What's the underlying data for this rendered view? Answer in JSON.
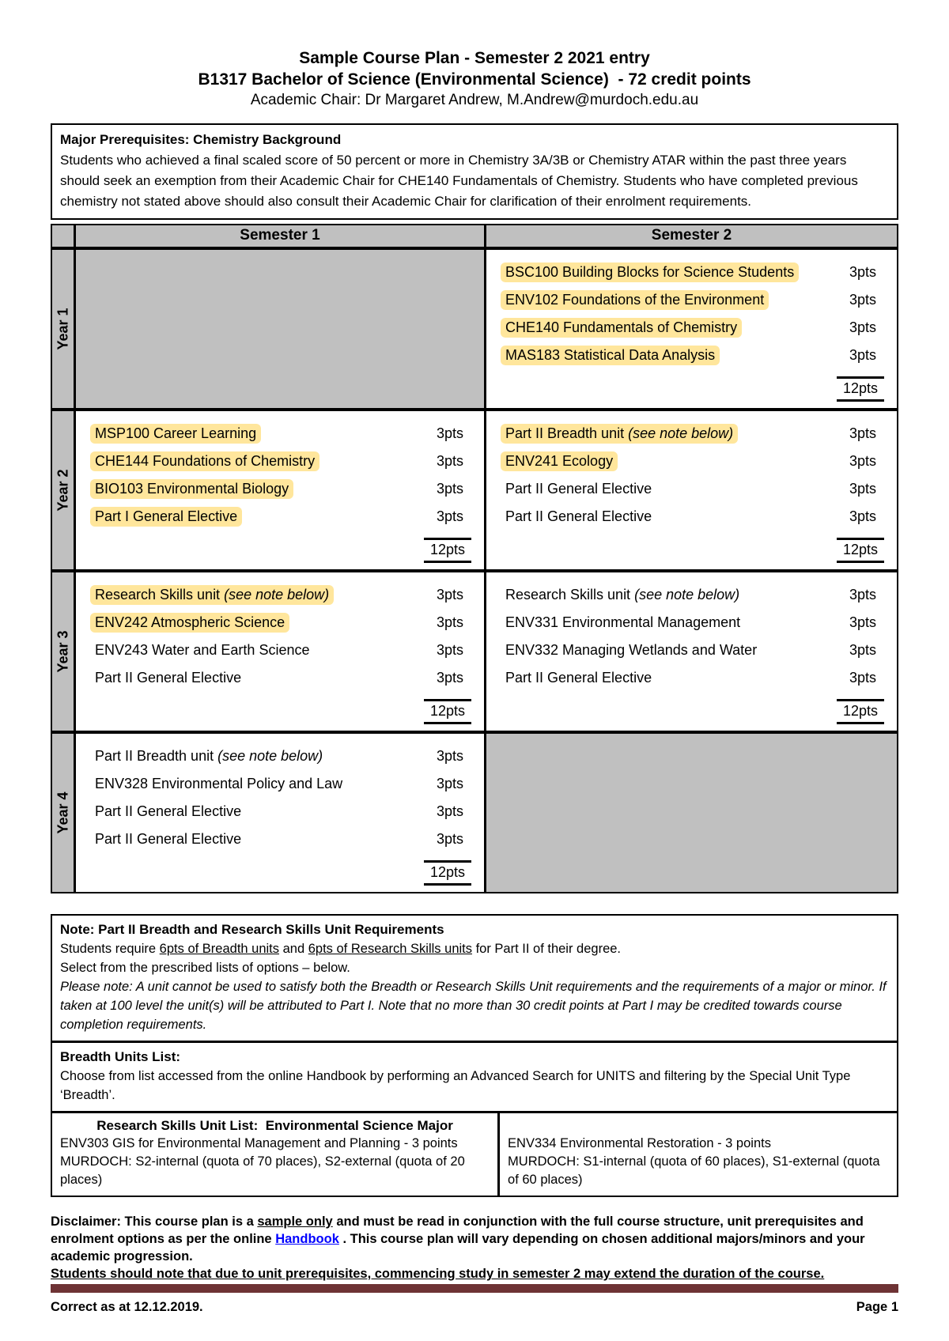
{
  "colors": {
    "highlight": "#ffe69c",
    "shaded": "#c0c0c0",
    "rule": "#6e3335",
    "link": "#0000ff"
  },
  "header": {
    "title1": "Sample Course Plan - Semester 2 2021 entry",
    "title2": "B1317 Bachelor of Science (Environmental Science)  - 72 credit points",
    "chair": "Academic Chair: Dr Margaret Andrew, M.Andrew@murdoch.edu.au"
  },
  "prerequisites": {
    "title": "Major Prerequisites: Chemistry Background",
    "body": "Students who achieved a final scaled score of 50 percent or more in Chemistry 3A/3B or Chemistry ATAR within the past three years should seek an exemption from their Academic Chair for CHE140 Fundamentals of Chemistry. Students who have completed previous chemistry not stated above should also consult their Academic Chair for clarification of their enrolment requirements."
  },
  "plan_table": {
    "header": {
      "sem1": "Semester 1",
      "sem2": "Semester 2"
    },
    "years": [
      {
        "label": "Year 1",
        "sem1": {
          "empty": true,
          "units": [],
          "total": ""
        },
        "sem2": {
          "empty": false,
          "total": "12pts",
          "units": [
            {
              "name": "BSC100 Building Blocks for Science Students",
              "note": "",
              "pts": "3pts",
              "highlight": true
            },
            {
              "name": "ENV102 Foundations of the Environment",
              "note": "",
              "pts": "3pts",
              "highlight": true
            },
            {
              "name": "CHE140 Fundamentals of Chemistry",
              "note": "",
              "pts": "3pts",
              "highlight": true
            },
            {
              "name": "MAS183 Statistical Data Analysis",
              "note": "",
              "pts": "3pts",
              "highlight": true
            }
          ]
        }
      },
      {
        "label": "Year 2",
        "sem1": {
          "empty": false,
          "total": "12pts",
          "units": [
            {
              "name": "MSP100 Career Learning",
              "note": "",
              "pts": "3pts",
              "highlight": true
            },
            {
              "name": "CHE144 Foundations of Chemistry",
              "note": "",
              "pts": "3pts",
              "highlight": true
            },
            {
              "name": "BIO103 Environmental Biology",
              "note": "",
              "pts": "3pts",
              "highlight": true
            },
            {
              "name": "Part I General Elective",
              "note": "",
              "pts": "3pts",
              "highlight": true
            }
          ]
        },
        "sem2": {
          "empty": false,
          "total": "12pts",
          "units": [
            {
              "name": "Part II Breadth unit ",
              "note": "(see note below)",
              "pts": "3pts",
              "highlight": true
            },
            {
              "name": "ENV241 Ecology",
              "note": "",
              "pts": "3pts",
              "highlight": true
            },
            {
              "name": "Part II General Elective",
              "note": "",
              "pts": "3pts",
              "highlight": false
            },
            {
              "name": "Part II General Elective",
              "note": "",
              "pts": "3pts",
              "highlight": false
            }
          ]
        }
      },
      {
        "label": "Year 3",
        "sem1": {
          "empty": false,
          "total": "12pts",
          "units": [
            {
              "name": "Research Skills unit ",
              "note": "(see note below)",
              "pts": "3pts",
              "highlight": true
            },
            {
              "name": "ENV242 Atmospheric Science",
              "note": "",
              "pts": "3pts",
              "highlight": true
            },
            {
              "name": "ENV243 Water and Earth Science",
              "note": "",
              "pts": "3pts",
              "highlight": false
            },
            {
              "name": "Part II General Elective",
              "note": "",
              "pts": "3pts",
              "highlight": false
            }
          ]
        },
        "sem2": {
          "empty": false,
          "total": "12pts",
          "units": [
            {
              "name": "Research Skills unit ",
              "note": "(see note below)",
              "pts": "3pts",
              "highlight": false
            },
            {
              "name": "ENV331 Environmental Management",
              "note": "",
              "pts": "3pts",
              "highlight": false
            },
            {
              "name": "ENV332 Managing Wetlands and Water",
              "note": "",
              "pts": "3pts",
              "highlight": false
            },
            {
              "name": "Part II General Elective",
              "note": "",
              "pts": "3pts",
              "highlight": false
            }
          ]
        }
      },
      {
        "label": "Year 4",
        "sem1": {
          "empty": false,
          "total": "12pts",
          "units": [
            {
              "name": "Part II Breadth unit ",
              "note": "(see note below)",
              "pts": "3pts",
              "highlight": false
            },
            {
              "name": "ENV328 Environmental Policy and Law",
              "note": "",
              "pts": "3pts",
              "highlight": false
            },
            {
              "name": "Part II General Elective",
              "note": "",
              "pts": "3pts",
              "highlight": false
            },
            {
              "name": "Part II General Elective",
              "note": "",
              "pts": "3pts",
              "highlight": false
            }
          ]
        },
        "sem2": {
          "empty": true,
          "units": [],
          "total": ""
        }
      }
    ]
  },
  "notes": {
    "requirements": {
      "title": "Note: Part II Breadth and Research Skills Unit Requirements",
      "req_pre": "Students require ",
      "req_u1": "6pts of Breadth units",
      "req_mid": " and ",
      "req_u2": "6pts of Research Skills units",
      "req_post": " for Part II of their degree.",
      "select_line": "Select from the prescribed lists of options – below.",
      "italic_note": "Please note: A unit cannot be used to satisfy both the Breadth or Research Skills Unit requirements and the requirements of a major or minor. If taken at 100 level the unit(s) will be attributed to Part I. Note that no more than 30 credit points at Part I may be credited towards course completion requirements."
    },
    "breadth": {
      "title": "Breadth Units List:",
      "body": "Choose from list accessed from the online Handbook by performing an Advanced Search for UNITS and filtering by the Special Unit Type ‘Breadth’."
    },
    "research": {
      "title": "Research Skills Unit List:  Environmental Science Major",
      "left_line1": "ENV303 GIS for Environmental Management and Planning - 3 points",
      "left_line2": "MURDOCH: S2-internal (quota of 70 places), S2-external (quota of 20 places)",
      "right_line1": "ENV334 Environmental Restoration - 3 points",
      "right_line2": "MURDOCH: S1-internal (quota of 60 places), S1-external (quota of 60 places)"
    }
  },
  "disclaimer": {
    "p1": "Disclaimer: This course plan is a ",
    "sample": "sample only",
    "p2": " and must be read in conjunction with the full course structure, unit prerequisites and enrolment options as per the online ",
    "handbook": "Handbook",
    "p3": " . This course plan will vary depending on chosen additional majors/minors and your academic progression.",
    "warning": "Students should note that due to unit prerequisites, commencing study in semester 2 may extend the duration of the course."
  },
  "footer": {
    "left": "Correct as at 12.12.2019.",
    "right": "Page 1"
  }
}
